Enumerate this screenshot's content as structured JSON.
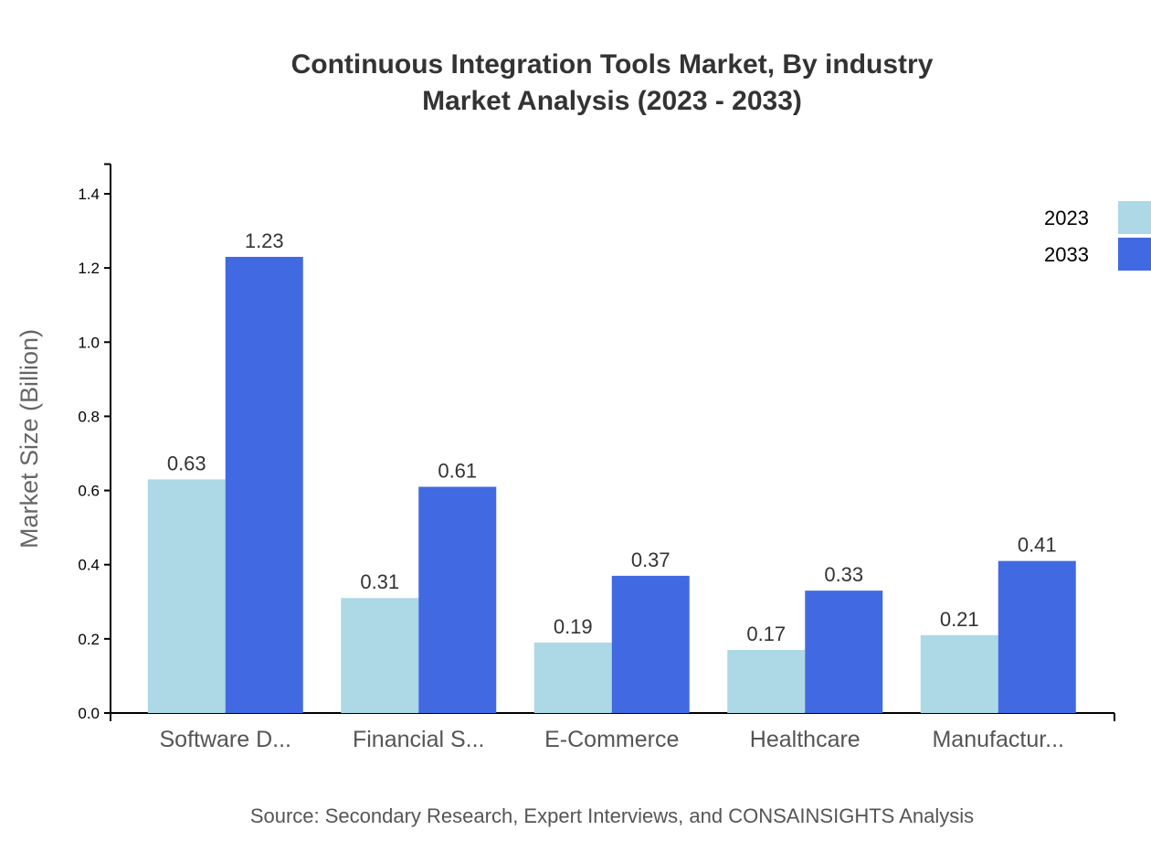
{
  "chart_data": {
    "type": "bar",
    "title": "Continuous Integration Tools Market, By industry",
    "subtitle": "Market Analysis (2023 - 2033)",
    "xlabel": "",
    "ylabel": "Market Size (Billion)",
    "ylim": [
      0,
      1.48
    ],
    "yticks": [
      "0.0",
      "0.2",
      "0.4",
      "0.6",
      "0.8",
      "1.0",
      "1.2",
      "1.4"
    ],
    "categories": [
      "Software D...",
      "Financial S...",
      "E-Commerce",
      "Healthcare",
      "Manufactur..."
    ],
    "series": [
      {
        "name": "2023",
        "color": "#add8e6",
        "values": [
          0.63,
          0.31,
          0.19,
          0.17,
          0.21
        ]
      },
      {
        "name": "2033",
        "color": "#4169e1",
        "values": [
          1.23,
          0.61,
          0.37,
          0.33,
          0.41
        ]
      }
    ],
    "legend_position": "top-right",
    "grid": false,
    "source": "Source: Secondary Research, Expert Interviews, and CONSAINSIGHTS Analysis"
  }
}
